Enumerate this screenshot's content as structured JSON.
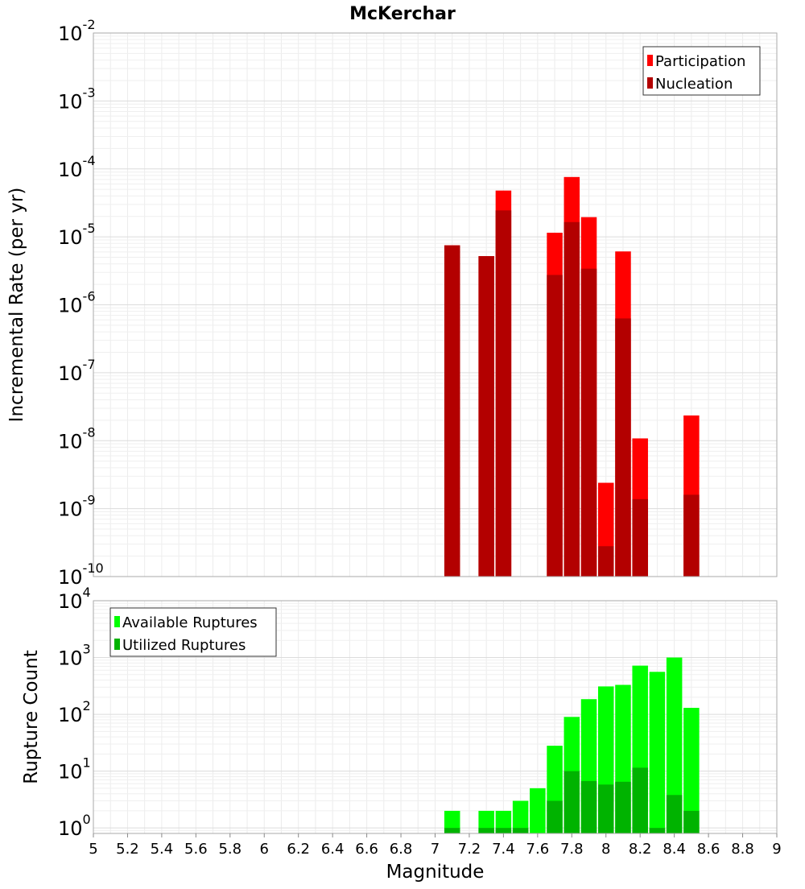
{
  "title": "McKerchar",
  "chart_data": [
    {
      "type": "bar",
      "title": "McKerchar",
      "xlabel": "Magnitude",
      "ylabel": "Incremental Rate (per yr)",
      "xlim": [
        5,
        9
      ],
      "ylim": [
        1e-10,
        0.01
      ],
      "yscale": "log",
      "grid": true,
      "legend_position": "top-right",
      "y_tick_exponents": [
        "-10",
        "-9",
        "-8",
        "-7",
        "-6",
        "-5",
        "-4",
        "-3",
        "-2"
      ],
      "y_tick_base": "10",
      "x": [
        7.1,
        7.3,
        7.4,
        7.7,
        7.8,
        7.9,
        8.0,
        8.1,
        8.2,
        8.5
      ],
      "series": [
        {
          "name": "Participation",
          "color": "#ff0000",
          "values": [
            7.5e-06,
            5.2e-06,
            4.8e-05,
            1.15e-05,
            7.6e-05,
            1.95e-05,
            2.4e-09,
            6.1e-06,
            1.08e-08,
            2.35e-08
          ]
        },
        {
          "name": "Nucleation",
          "color": "#b30000",
          "values": [
            7.5e-06,
            5.2e-06,
            2.45e-05,
            2.75e-06,
            1.65e-05,
            3.4e-06,
            2.8e-10,
            6.3e-07,
            1.38e-09,
            1.6e-09
          ]
        }
      ]
    },
    {
      "type": "bar",
      "xlabel": "Magnitude",
      "ylabel": "Rupture Count",
      "xlim": [
        5,
        9
      ],
      "ylim": [
        0.8,
        10000
      ],
      "yscale": "log",
      "grid": true,
      "legend_position": "top-left",
      "y_tick_exponents": [
        "0",
        "1",
        "2",
        "3",
        "4"
      ],
      "y_tick_base": "10",
      "x_ticks": [
        "5",
        "5.2",
        "5.4",
        "5.6",
        "5.8",
        "6",
        "6.2",
        "6.4",
        "6.6",
        "6.8",
        "7",
        "7.2",
        "7.4",
        "7.6",
        "7.8",
        "8",
        "8.2",
        "8.4",
        "8.6",
        "8.8",
        "9"
      ],
      "x": [
        7.1,
        7.3,
        7.4,
        7.5,
        7.6,
        7.7,
        7.8,
        7.9,
        8.0,
        8.1,
        8.2,
        8.3,
        8.4,
        8.5
      ],
      "series": [
        {
          "name": "Available Ruptures",
          "color": "#00ff00",
          "values": [
            2,
            2,
            2,
            3,
            5,
            28,
            90,
            185,
            310,
            330,
            720,
            560,
            1000,
            130
          ]
        },
        {
          "name": "Utilized Ruptures",
          "color": "#00b300",
          "values": [
            1,
            1,
            1,
            1,
            0,
            3,
            10,
            6.7,
            5.8,
            6.5,
            11.5,
            1,
            3.8,
            2
          ]
        }
      ]
    }
  ]
}
